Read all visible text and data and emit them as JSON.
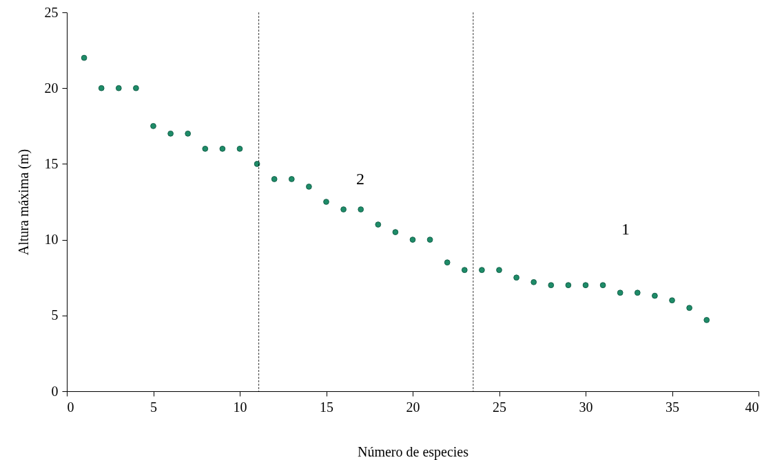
{
  "chart_data": {
    "type": "scatter",
    "xlabel": "Número de especies",
    "ylabel": "Altura máxima (m)",
    "x": [
      1,
      2,
      3,
      4,
      5,
      6,
      7,
      8,
      9,
      10,
      11,
      12,
      13,
      14,
      15,
      16,
      17,
      18,
      19,
      20,
      21,
      22,
      23,
      24,
      25,
      26,
      27,
      28,
      29,
      30,
      31,
      32,
      33,
      34,
      35,
      36,
      37
    ],
    "series": [
      {
        "color": "#1e8c68",
        "values": [
          22,
          20,
          20,
          20,
          17.5,
          17,
          17,
          16,
          16,
          16,
          15,
          14,
          14,
          13.5,
          12.5,
          12,
          12,
          11,
          10.5,
          10,
          10,
          8.5,
          8,
          8,
          8,
          7.5,
          7.2,
          7,
          7,
          7,
          7,
          6.5,
          6.5,
          6.3,
          6,
          5.5,
          4.7
        ]
      }
    ],
    "xlim": [
      0,
      40
    ],
    "xticks": [
      0,
      5,
      10,
      15,
      20,
      25,
      30,
      35,
      40
    ],
    "ylim": [
      0,
      25
    ],
    "yticks": [
      0,
      5,
      10,
      15,
      20,
      25
    ],
    "marker": "circle",
    "grid": false,
    "ref_lines": [
      {
        "axis": "x",
        "value": 11.1,
        "line_style": "dashed",
        "color": "#000000"
      },
      {
        "axis": "x",
        "value": 23.5,
        "line_style": "dashed",
        "color": "#000000"
      }
    ],
    "annotations": [
      "2",
      "1"
    ]
  }
}
